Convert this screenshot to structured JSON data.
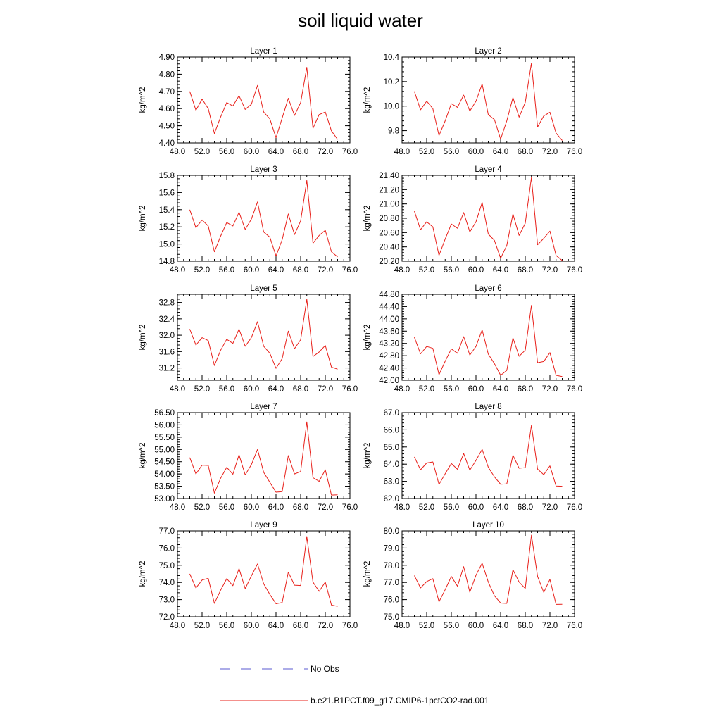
{
  "figure": {
    "title": "soil liquid water"
  },
  "legend": [
    {
      "label": "No Obs",
      "color": "#5a5ad0",
      "dash": true
    },
    {
      "label": "b.e21.B1PCT.f09_g17.CMIP6-1pctCO2-rad.001",
      "color": "#e8201a",
      "dash": false
    }
  ],
  "chart_data": [
    {
      "type": "line",
      "title": "Layer 1",
      "ylabel": "kg/m^2",
      "xlim": [
        48,
        76
      ],
      "xticks": [
        "48.0",
        "52.0",
        "56.0",
        "60.0",
        "64.0",
        "68.0",
        "72.0",
        "76.0"
      ],
      "ylim": [
        4.4,
        4.9
      ],
      "yticks": [
        "4.40",
        "4.50",
        "4.60",
        "4.70",
        "4.80",
        "4.90"
      ],
      "x": [
        50,
        51,
        52,
        53,
        54,
        55,
        56,
        57,
        58,
        59,
        60,
        61,
        62,
        63,
        64,
        65,
        66,
        67,
        68,
        69,
        70,
        71,
        72,
        73,
        74
      ],
      "series": [
        {
          "name": "b.e21.B1PCT.f09_g17.CMIP6-1pctCO2-rad.001",
          "values": [
            4.7,
            4.59,
            4.655,
            4.6,
            4.455,
            4.55,
            4.635,
            4.615,
            4.675,
            4.595,
            4.625,
            4.735,
            4.58,
            4.54,
            4.43,
            4.545,
            4.66,
            4.56,
            4.635,
            4.84,
            4.485,
            4.565,
            4.58,
            4.47,
            4.42
          ]
        }
      ]
    },
    {
      "type": "line",
      "title": "Layer 2",
      "ylabel": "kg/m^2",
      "xlim": [
        48,
        76
      ],
      "xticks": [
        "48.0",
        "52.0",
        "56.0",
        "60.0",
        "64.0",
        "68.0",
        "72.0",
        "76.0"
      ],
      "ylim": [
        9.7,
        10.4
      ],
      "yticks": [
        "9.8",
        "10.0",
        "10.2",
        "10.4"
      ],
      "x": [
        50,
        51,
        52,
        53,
        54,
        55,
        56,
        57,
        58,
        59,
        60,
        61,
        62,
        63,
        64,
        65,
        66,
        67,
        68,
        69,
        70,
        71,
        72,
        73,
        74
      ],
      "series": [
        {
          "name": "b.e21.B1PCT.f09_g17.CMIP6-1pctCO2-rad.001",
          "values": [
            10.12,
            9.97,
            10.04,
            9.98,
            9.76,
            9.88,
            10.02,
            9.99,
            10.09,
            9.96,
            10.04,
            10.18,
            9.93,
            9.89,
            9.73,
            9.88,
            10.07,
            9.91,
            10.03,
            10.35,
            9.83,
            9.92,
            9.95,
            9.78,
            9.72
          ]
        }
      ]
    },
    {
      "type": "line",
      "title": "Layer 3",
      "ylabel": "kg/m^2",
      "xlim": [
        48,
        76
      ],
      "xticks": [
        "48.0",
        "52.0",
        "56.0",
        "60.0",
        "64.0",
        "68.0",
        "72.0",
        "76.0"
      ],
      "ylim": [
        14.8,
        15.8
      ],
      "yticks": [
        "14.8",
        "15.0",
        "15.2",
        "15.4",
        "15.6",
        "15.8"
      ],
      "x": [
        50,
        51,
        52,
        53,
        54,
        55,
        56,
        57,
        58,
        59,
        60,
        61,
        62,
        63,
        64,
        65,
        66,
        67,
        68,
        69,
        70,
        71,
        72,
        73,
        74
      ],
      "series": [
        {
          "name": "b.e21.B1PCT.f09_g17.CMIP6-1pctCO2-rad.001",
          "values": [
            15.4,
            15.19,
            15.28,
            15.21,
            14.91,
            15.09,
            15.25,
            15.21,
            15.37,
            15.17,
            15.29,
            15.49,
            15.14,
            15.08,
            14.86,
            15.05,
            15.35,
            15.11,
            15.27,
            15.74,
            15.01,
            15.1,
            15.16,
            14.91,
            14.85
          ]
        }
      ]
    },
    {
      "type": "line",
      "title": "Layer 4",
      "ylabel": "kg/m^2",
      "xlim": [
        48,
        76
      ],
      "xticks": [
        "48.0",
        "52.0",
        "56.0",
        "60.0",
        "64.0",
        "68.0",
        "72.0",
        "76.0"
      ],
      "ylim": [
        20.2,
        21.4
      ],
      "yticks": [
        "20.20",
        "20.40",
        "20.60",
        "20.80",
        "21.00",
        "21.20",
        "21.40"
      ],
      "x": [
        50,
        51,
        52,
        53,
        54,
        55,
        56,
        57,
        58,
        59,
        60,
        61,
        62,
        63,
        64,
        65,
        66,
        67,
        68,
        69,
        70,
        71,
        72,
        73,
        74
      ],
      "series": [
        {
          "name": "b.e21.B1PCT.f09_g17.CMIP6-1pctCO2-rad.001",
          "values": [
            20.9,
            20.64,
            20.75,
            20.68,
            20.28,
            20.51,
            20.72,
            20.66,
            20.88,
            20.61,
            20.75,
            21.02,
            20.58,
            20.49,
            20.24,
            20.42,
            20.86,
            20.56,
            20.73,
            21.37,
            20.43,
            20.52,
            20.62,
            20.28,
            20.21
          ]
        }
      ]
    },
    {
      "type": "line",
      "title": "Layer 5",
      "ylabel": "kg/m^2",
      "xlim": [
        48,
        76
      ],
      "xticks": [
        "48.0",
        "52.0",
        "56.0",
        "60.0",
        "64.0",
        "68.0",
        "72.0",
        "76.0"
      ],
      "ylim": [
        30.9,
        33.0
      ],
      "yticks": [
        "31.2",
        "31.6",
        "32.0",
        "32.4",
        "32.8"
      ],
      "x": [
        50,
        51,
        52,
        53,
        54,
        55,
        56,
        57,
        58,
        59,
        60,
        61,
        62,
        63,
        64,
        65,
        66,
        67,
        68,
        69,
        70,
        71,
        72,
        73,
        74
      ],
      "series": [
        {
          "name": "b.e21.B1PCT.f09_g17.CMIP6-1pctCO2-rad.001",
          "values": [
            32.15,
            31.76,
            31.94,
            31.87,
            31.26,
            31.63,
            31.9,
            31.8,
            32.15,
            31.73,
            31.94,
            32.33,
            31.73,
            31.56,
            31.19,
            31.43,
            32.1,
            31.67,
            31.89,
            32.88,
            31.48,
            31.59,
            31.75,
            31.22,
            31.17
          ]
        }
      ]
    },
    {
      "type": "line",
      "title": "Layer 6",
      "ylabel": "kg/m^2",
      "xlim": [
        48,
        76
      ],
      "xticks": [
        "48.0",
        "52.0",
        "56.0",
        "60.0",
        "64.0",
        "68.0",
        "72.0",
        "76.0"
      ],
      "ylim": [
        42.0,
        44.8
      ],
      "yticks": [
        "42.00",
        "42.40",
        "42.80",
        "43.20",
        "43.60",
        "44.00",
        "44.40",
        "44.80"
      ],
      "x": [
        50,
        51,
        52,
        53,
        54,
        55,
        56,
        57,
        58,
        59,
        60,
        61,
        62,
        63,
        64,
        65,
        66,
        67,
        68,
        69,
        70,
        71,
        72,
        73,
        74
      ],
      "series": [
        {
          "name": "b.e21.B1PCT.f09_g17.CMIP6-1pctCO2-rad.001",
          "values": [
            43.4,
            42.86,
            43.1,
            43.04,
            42.18,
            42.62,
            43.02,
            42.88,
            43.42,
            42.82,
            43.1,
            43.64,
            42.85,
            42.54,
            42.16,
            42.32,
            43.38,
            42.78,
            42.98,
            44.44,
            42.57,
            42.61,
            42.9,
            42.16,
            42.12
          ]
        }
      ]
    },
    {
      "type": "line",
      "title": "Layer 7",
      "ylabel": "kg/m^2",
      "xlim": [
        48,
        76
      ],
      "xticks": [
        "48.0",
        "52.0",
        "56.0",
        "60.0",
        "64.0",
        "68.0",
        "72.0",
        "76.0"
      ],
      "ylim": [
        53.0,
        56.5
      ],
      "yticks": [
        "53.00",
        "53.50",
        "54.00",
        "54.50",
        "55.00",
        "55.50",
        "56.00",
        "56.50"
      ],
      "x": [
        50,
        51,
        52,
        53,
        54,
        55,
        56,
        57,
        58,
        59,
        60,
        61,
        62,
        63,
        64,
        65,
        66,
        67,
        68,
        69,
        70,
        71,
        72,
        73,
        74
      ],
      "series": [
        {
          "name": "b.e21.B1PCT.f09_g17.CMIP6-1pctCO2-rad.001",
          "values": [
            54.67,
            54.0,
            54.36,
            54.35,
            53.22,
            53.82,
            54.27,
            53.99,
            54.78,
            53.96,
            54.38,
            55.0,
            54.07,
            53.66,
            53.26,
            53.28,
            54.75,
            54.0,
            54.1,
            56.12,
            53.85,
            53.7,
            54.17,
            53.14,
            53.15
          ]
        }
      ]
    },
    {
      "type": "line",
      "title": "Layer 8",
      "ylabel": "kg/m^2",
      "xlim": [
        48,
        76
      ],
      "xticks": [
        "48.0",
        "52.0",
        "56.0",
        "60.0",
        "64.0",
        "68.0",
        "72.0",
        "76.0"
      ],
      "ylim": [
        62.0,
        67.0
      ],
      "yticks": [
        "62.0",
        "63.0",
        "64.0",
        "65.0",
        "66.0",
        "67.0"
      ],
      "x": [
        50,
        51,
        52,
        53,
        54,
        55,
        56,
        57,
        58,
        59,
        60,
        61,
        62,
        63,
        64,
        65,
        66,
        67,
        68,
        69,
        70,
        71,
        72,
        73,
        74
      ],
      "series": [
        {
          "name": "b.e21.B1PCT.f09_g17.CMIP6-1pctCO2-rad.001",
          "values": [
            64.42,
            63.67,
            64.07,
            64.13,
            62.82,
            63.44,
            64.04,
            63.7,
            64.62,
            63.65,
            64.22,
            64.86,
            63.82,
            63.26,
            62.83,
            62.85,
            64.52,
            63.76,
            63.8,
            66.26,
            63.71,
            63.39,
            63.9,
            62.73,
            62.71
          ]
        }
      ]
    },
    {
      "type": "line",
      "title": "Layer 9",
      "ylabel": "kg/m^2",
      "xlim": [
        48,
        76
      ],
      "xticks": [
        "48.0",
        "52.0",
        "56.0",
        "60.0",
        "64.0",
        "68.0",
        "72.0",
        "76.0"
      ],
      "ylim": [
        72.0,
        77.0
      ],
      "yticks": [
        "72.0",
        "73.0",
        "74.0",
        "75.0",
        "76.0",
        "77.0"
      ],
      "x": [
        50,
        51,
        52,
        53,
        54,
        55,
        56,
        57,
        58,
        59,
        60,
        61,
        62,
        63,
        64,
        65,
        66,
        67,
        68,
        69,
        70,
        71,
        72,
        73,
        74
      ],
      "series": [
        {
          "name": "b.e21.B1PCT.f09_g17.CMIP6-1pctCO2-rad.001",
          "values": [
            74.5,
            73.68,
            74.14,
            74.24,
            72.78,
            73.54,
            74.22,
            73.81,
            74.81,
            73.64,
            74.38,
            75.08,
            73.92,
            73.3,
            72.76,
            72.83,
            74.6,
            73.84,
            73.82,
            76.67,
            74.02,
            73.48,
            74.02,
            72.68,
            72.61
          ]
        }
      ]
    },
    {
      "type": "line",
      "title": "Layer 10",
      "ylabel": "kg/m^2",
      "xlim": [
        48,
        76
      ],
      "xticks": [
        "48.0",
        "52.0",
        "56.0",
        "60.0",
        "64.0",
        "68.0",
        "72.0",
        "76.0"
      ],
      "ylim": [
        75.0,
        80.0
      ],
      "yticks": [
        "75.0",
        "76.0",
        "77.0",
        "78.0",
        "79.0",
        "80.0"
      ],
      "x": [
        50,
        51,
        52,
        53,
        54,
        55,
        56,
        57,
        58,
        59,
        60,
        61,
        62,
        63,
        64,
        65,
        66,
        67,
        68,
        69,
        70,
        71,
        72,
        73,
        74
      ],
      "series": [
        {
          "name": "b.e21.B1PCT.f09_g17.CMIP6-1pctCO2-rad.001",
          "values": [
            77.4,
            76.68,
            77.05,
            77.22,
            75.87,
            76.58,
            77.35,
            76.78,
            77.92,
            76.43,
            77.42,
            78.12,
            77.02,
            76.22,
            75.8,
            75.78,
            77.74,
            77.02,
            76.65,
            79.75,
            77.35,
            76.42,
            77.18,
            75.72,
            75.73
          ]
        }
      ]
    }
  ]
}
